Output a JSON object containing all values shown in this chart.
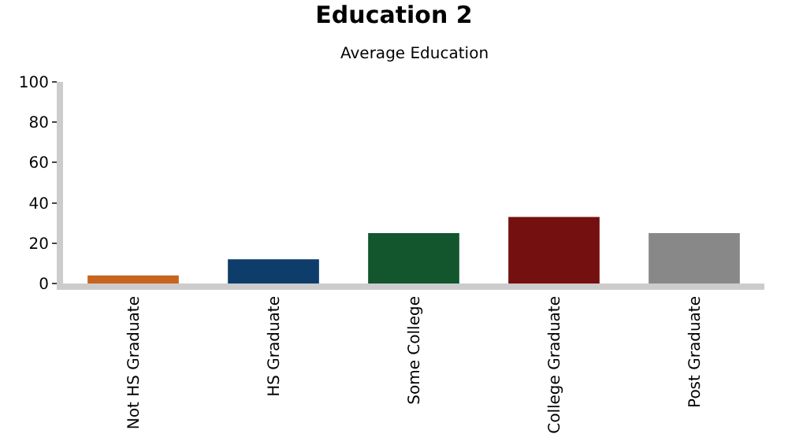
{
  "chart_data": {
    "type": "bar",
    "title": "Education 2",
    "subtitle": "Average Education",
    "categories": [
      "Not HS Graduate",
      "HS Graduate",
      "Some College",
      "College Graduate",
      "Post Graduate"
    ],
    "values": [
      4,
      12,
      25,
      33,
      25
    ],
    "colors": [
      "#c8641e",
      "#0e3d6b",
      "#13562e",
      "#74100f",
      "#888888"
    ],
    "ylim": [
      0,
      100
    ],
    "yticks": [
      0,
      20,
      40,
      60,
      80,
      100
    ]
  }
}
